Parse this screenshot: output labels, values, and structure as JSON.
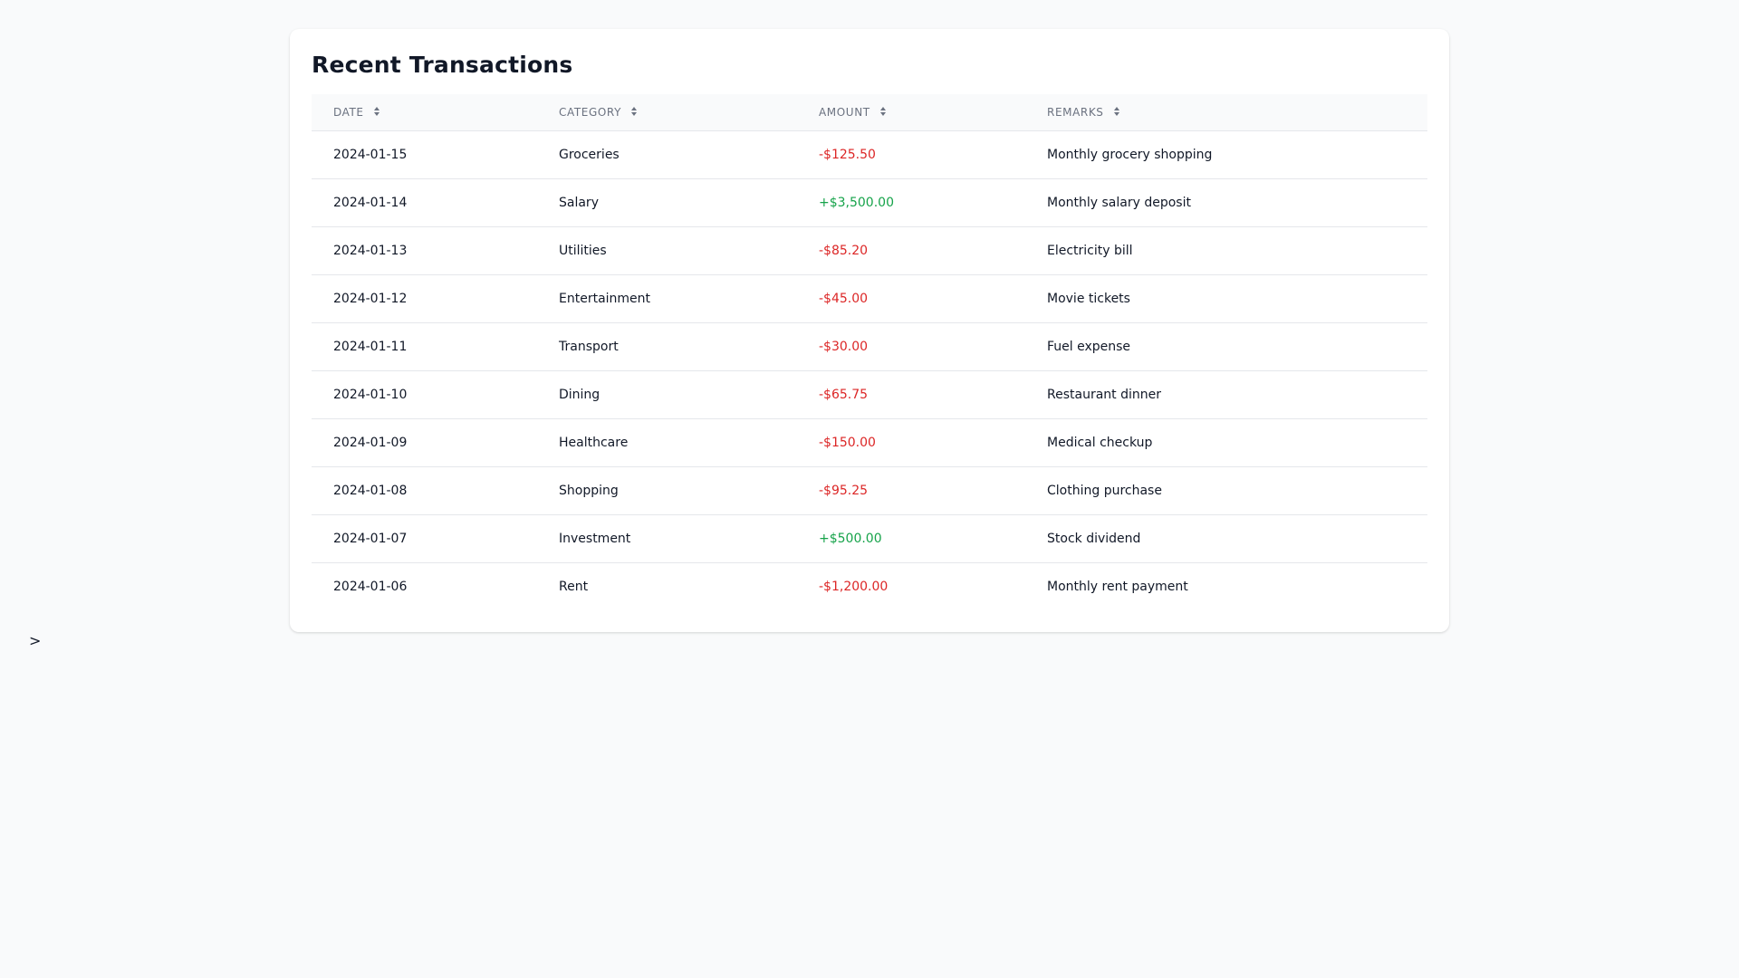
{
  "card": {
    "title": "Recent Transactions"
  },
  "table": {
    "headers": {
      "date": "DATE",
      "category": "CATEGORY",
      "amount": "AMOUNT",
      "remarks": "REMARKS"
    },
    "rows": [
      {
        "date": "2024-01-15",
        "category": "Groceries",
        "amount": "-$125.50",
        "remarks": "Monthly grocery shopping",
        "direction": "out"
      },
      {
        "date": "2024-01-14",
        "category": "Salary",
        "amount": "+$3,500.00",
        "remarks": "Monthly salary deposit",
        "direction": "in"
      },
      {
        "date": "2024-01-13",
        "category": "Utilities",
        "amount": "-$85.20",
        "remarks": "Electricity bill",
        "direction": "out"
      },
      {
        "date": "2024-01-12",
        "category": "Entertainment",
        "amount": "-$45.00",
        "remarks": "Movie tickets",
        "direction": "out"
      },
      {
        "date": "2024-01-11",
        "category": "Transport",
        "amount": "-$30.00",
        "remarks": "Fuel expense",
        "direction": "out"
      },
      {
        "date": "2024-01-10",
        "category": "Dining",
        "amount": "-$65.75",
        "remarks": "Restaurant dinner",
        "direction": "out"
      },
      {
        "date": "2024-01-09",
        "category": "Healthcare",
        "amount": "-$150.00",
        "remarks": "Medical checkup",
        "direction": "out"
      },
      {
        "date": "2024-01-08",
        "category": "Shopping",
        "amount": "-$95.25",
        "remarks": "Clothing purchase",
        "direction": "out"
      },
      {
        "date": "2024-01-07",
        "category": "Investment",
        "amount": "+$500.00",
        "remarks": "Stock dividend",
        "direction": "in"
      },
      {
        "date": "2024-01-06",
        "category": "Rent",
        "amount": "-$1,200.00",
        "remarks": "Monthly rent payment",
        "direction": "out"
      }
    ]
  },
  "prompt": {
    "text": ">"
  },
  "colors": {
    "negative": "#dc2626",
    "positive": "#16a34a",
    "background": "#f9fafb",
    "card": "#ffffff"
  },
  "icons": {
    "sort": "sort-icon"
  }
}
